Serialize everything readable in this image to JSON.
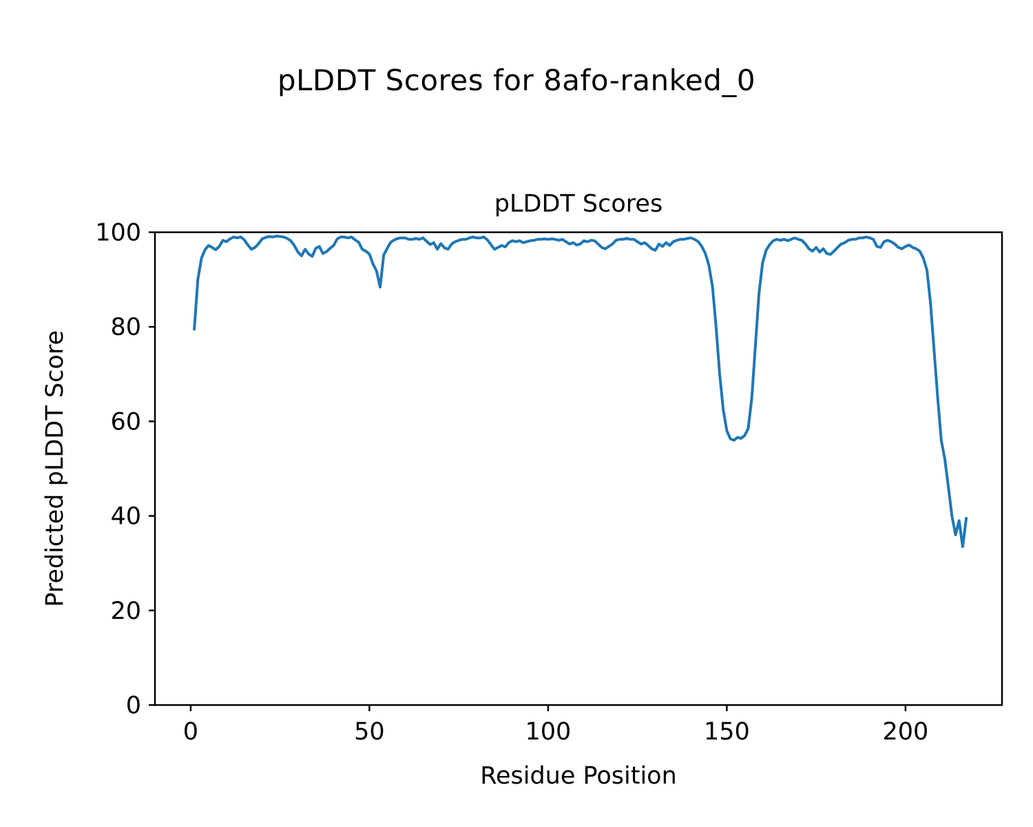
{
  "figure": {
    "title": "pLDDT Scores for 8afo-ranked_0"
  },
  "chart_data": {
    "type": "line",
    "title": "pLDDT Scores",
    "xlabel": "Residue Position",
    "ylabel": "Predicted pLDDT Score",
    "xlim": [
      -10,
      227
    ],
    "ylim": [
      0,
      100
    ],
    "xticks": [
      0,
      50,
      100,
      150,
      200
    ],
    "yticks": [
      0,
      20,
      40,
      60,
      80,
      100
    ],
    "grid": false,
    "legend": null,
    "line_color": "#1f77b4",
    "line_width": 4,
    "series": [
      {
        "name": "pLDDT",
        "x": [
          1,
          2,
          3,
          4,
          5,
          6,
          7,
          8,
          9,
          10,
          11,
          12,
          13,
          14,
          15,
          16,
          17,
          18,
          19,
          20,
          21,
          22,
          23,
          24,
          25,
          26,
          27,
          28,
          29,
          30,
          31,
          32,
          33,
          34,
          35,
          36,
          37,
          38,
          39,
          40,
          41,
          42,
          43,
          44,
          45,
          46,
          47,
          48,
          49,
          50,
          51,
          52,
          53,
          54,
          55,
          56,
          57,
          58,
          59,
          60,
          61,
          62,
          63,
          64,
          65,
          66,
          67,
          68,
          69,
          70,
          71,
          72,
          73,
          74,
          75,
          76,
          77,
          78,
          79,
          80,
          81,
          82,
          83,
          84,
          85,
          86,
          87,
          88,
          89,
          90,
          91,
          92,
          93,
          94,
          95,
          96,
          97,
          98,
          99,
          100,
          101,
          102,
          103,
          104,
          105,
          106,
          107,
          108,
          109,
          110,
          111,
          112,
          113,
          114,
          115,
          116,
          117,
          118,
          119,
          120,
          121,
          122,
          123,
          124,
          125,
          126,
          127,
          128,
          129,
          130,
          131,
          132,
          133,
          134,
          135,
          136,
          137,
          138,
          139,
          140,
          141,
          142,
          143,
          144,
          145,
          146,
          147,
          148,
          149,
          150,
          151,
          152,
          153,
          154,
          155,
          156,
          157,
          158,
          159,
          160,
          161,
          162,
          163,
          164,
          165,
          166,
          167,
          168,
          169,
          170,
          171,
          172,
          173,
          174,
          175,
          176,
          177,
          178,
          179,
          180,
          181,
          182,
          183,
          184,
          185,
          186,
          187,
          188,
          189,
          190,
          191,
          192,
          193,
          194,
          195,
          196,
          197,
          198,
          199,
          200,
          201,
          202,
          203,
          204,
          205,
          206,
          207,
          208,
          209,
          210,
          211,
          212,
          213,
          214,
          215,
          216,
          217
        ],
        "values": [
          79.5,
          90,
          94.5,
          96.3,
          97.2,
          96.8,
          96.3,
          97,
          98.3,
          98,
          98.6,
          99,
          98.8,
          99,
          98.4,
          97.3,
          96.4,
          96.8,
          97.6,
          98.6,
          98.9,
          99.1,
          99,
          99.2,
          99.1,
          99,
          98.7,
          98.2,
          97.2,
          95.8,
          95,
          96.4,
          95.4,
          94.9,
          96.6,
          97,
          95.5,
          95.9,
          96.6,
          97.2,
          98.6,
          99,
          99,
          98.8,
          99,
          98.4,
          97.9,
          96.4,
          96,
          95.4,
          93.3,
          91.8,
          88.4,
          95.2,
          96.6,
          97.9,
          98.4,
          98.7,
          98.8,
          98.8,
          98.5,
          98.5,
          98.7,
          98.5,
          98.8,
          98.1,
          97.4,
          97.8,
          96.4,
          97.6,
          96.7,
          96.4,
          97.5,
          98,
          98.3,
          98.5,
          98.5,
          98.8,
          99,
          98.8,
          98.8,
          99,
          98.4,
          97.4,
          96.4,
          96.8,
          97.2,
          96.9,
          97.8,
          98.2,
          98,
          98.2,
          97.8,
          98,
          98.2,
          98.3,
          98.5,
          98.5,
          98.6,
          98.5,
          98.6,
          98.5,
          98.3,
          98.5,
          98,
          97.5,
          97.8,
          97.3,
          97.5,
          98.2,
          98,
          98.3,
          98.2,
          97.5,
          96.8,
          96.5,
          97,
          97.5,
          98.3,
          98.5,
          98.5,
          98.7,
          98.5,
          98.5,
          98,
          97.5,
          97.8,
          97.2,
          96.5,
          96.2,
          97.5,
          97,
          97.8,
          97.2,
          98,
          98.3,
          98.5,
          98.5,
          98.7,
          98.8,
          98.5,
          98,
          97,
          95.5,
          93,
          88.5,
          80,
          70,
          62.5,
          58,
          56.3,
          56,
          56.6,
          56.4,
          57,
          58.5,
          65,
          76,
          87,
          93.5,
          96.2,
          97.4,
          98.2,
          98.5,
          98.3,
          98.5,
          98.2,
          98.5,
          98.8,
          98.5,
          98.3,
          97.5,
          96.5,
          96,
          96.8,
          95.8,
          96.5,
          95.5,
          95.3,
          96,
          96.8,
          97.5,
          97.8,
          98.3,
          98.5,
          98.5,
          98.8,
          98.8,
          99,
          98.8,
          98.5,
          97,
          96.8,
          98,
          98.3,
          98,
          97.5,
          96.8,
          96.5,
          97,
          97.3,
          96.8,
          96.5,
          96,
          94.5,
          92,
          85,
          75,
          65,
          56,
          52,
          46,
          40,
          36,
          39,
          33.5,
          39.5
        ]
      }
    ]
  }
}
